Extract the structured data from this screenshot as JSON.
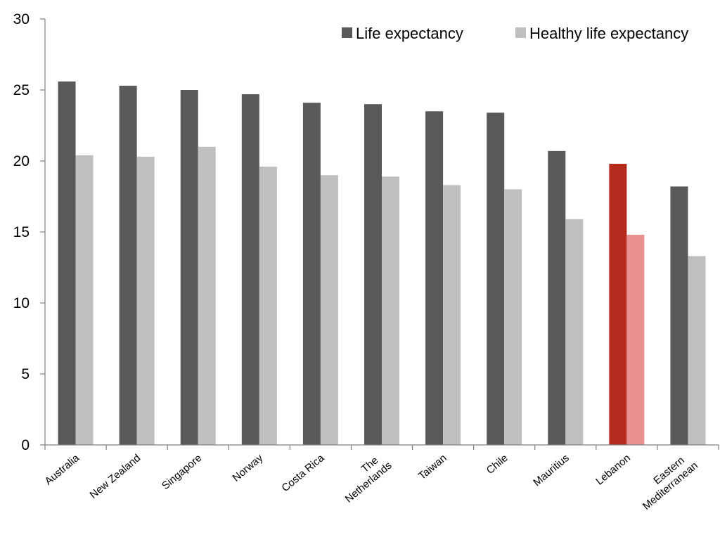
{
  "chart_data": {
    "type": "bar",
    "title": "",
    "xlabel": "",
    "ylabel": "",
    "ylim": [
      0,
      30
    ],
    "yticks": [
      0,
      5,
      10,
      15,
      20,
      25,
      30
    ],
    "grid": false,
    "legend_position": "top-right",
    "categories": [
      [
        "Australia"
      ],
      [
        "New Zealand"
      ],
      [
        "Singapore"
      ],
      [
        "Norway"
      ],
      [
        "Costa Rica"
      ],
      [
        "The",
        "Netherlands"
      ],
      [
        "Taiwan"
      ],
      [
        "Chile"
      ],
      [
        "Mauritius"
      ],
      [
        "Lebanon"
      ],
      [
        "Eastern",
        "Mediterranean"
      ]
    ],
    "series": [
      {
        "name": "Life expectancy",
        "color": "#595959",
        "values": [
          25.6,
          25.3,
          25.0,
          24.7,
          24.1,
          24.0,
          23.5,
          23.4,
          20.7,
          19.8,
          18.2
        ]
      },
      {
        "name": "Healthy life expectancy",
        "color": "#bfbfbf",
        "values": [
          20.4,
          20.3,
          21.0,
          19.6,
          19.0,
          18.9,
          18.3,
          18.0,
          15.9,
          14.8,
          13.3
        ]
      }
    ],
    "highlight": {
      "category_index": 9,
      "colors": [
        "#b52b1e",
        "#e89090"
      ]
    }
  }
}
